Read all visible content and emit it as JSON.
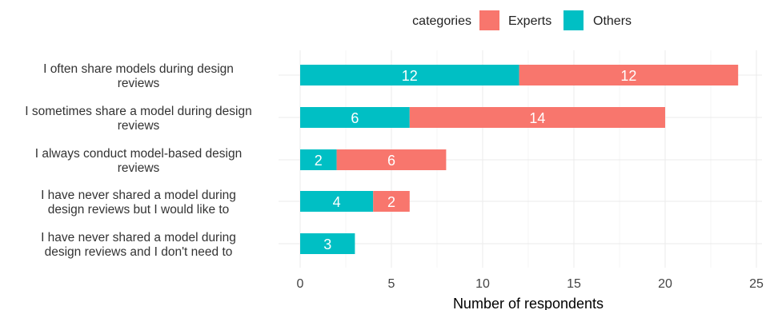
{
  "chart_data": {
    "type": "bar",
    "orientation": "horizontal",
    "stacked": true,
    "categories": [
      "I often share models during design reviews",
      "I sometimes share a model during design reviews",
      "I always conduct model-based design reviews",
      "I have never shared a model during design reviews but I would like to",
      "I have never shared a model during design reviews and I don't need to"
    ],
    "category_lines": [
      [
        "I often share models during design",
        "reviews"
      ],
      [
        "I sometimes share a model during design",
        "reviews"
      ],
      [
        "I always conduct model-based design",
        "reviews"
      ],
      [
        "I have never shared a model during",
        "design reviews but I would like to"
      ],
      [
        "I have never shared a model during",
        "design reviews and I don't need to"
      ]
    ],
    "series": [
      {
        "name": "Others",
        "color": "#00BFC4",
        "values": [
          12,
          6,
          2,
          4,
          3
        ]
      },
      {
        "name": "Experts",
        "color": "#F8766D",
        "values": [
          12,
          14,
          6,
          2,
          0
        ]
      }
    ],
    "legend": {
      "title": "categories",
      "position": "top",
      "order": [
        "Experts",
        "Others"
      ]
    },
    "xlabel": "Number of respondents",
    "ylabel": "",
    "xlim": [
      0,
      25
    ],
    "xticks": [
      0,
      5,
      10,
      15,
      20,
      25
    ],
    "grid": true,
    "title": ""
  }
}
